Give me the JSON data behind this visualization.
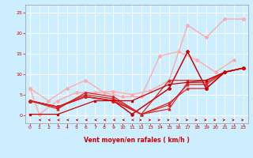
{
  "xlabel": "Vent moyen/en rafales ( km/h )",
  "background_color": "#cceeff",
  "grid_color": "#ffffff",
  "xlim": [
    -0.5,
    23.5
  ],
  "ylim": [
    -2,
    27
  ],
  "yticks": [
    0,
    5,
    10,
    15,
    20,
    25
  ],
  "xticks": [
    0,
    1,
    2,
    3,
    4,
    5,
    6,
    7,
    8,
    9,
    10,
    11,
    12,
    13,
    14,
    15,
    16,
    17,
    18,
    19,
    20,
    21,
    22,
    23
  ],
  "series": [
    {
      "x": [
        0,
        1,
        3,
        5,
        7,
        9,
        11,
        13,
        15,
        17,
        19,
        21,
        23
      ],
      "y": [
        6.5,
        0.2,
        3.5,
        5.5,
        5.5,
        5.8,
        5.0,
        6.0,
        8.5,
        22.0,
        19.0,
        23.5,
        23.5
      ],
      "color": "#ffaaaa",
      "lw": 1.0,
      "marker": "D",
      "ms": 2.0
    },
    {
      "x": [
        0,
        2,
        4,
        6,
        8,
        10,
        12,
        14,
        16,
        18,
        20,
        22
      ],
      "y": [
        6.5,
        3.5,
        6.5,
        8.5,
        5.5,
        4.5,
        4.5,
        14.5,
        15.5,
        13.5,
        10.5,
        13.5
      ],
      "color": "#ffaaaa",
      "lw": 1.0,
      "marker": "D",
      "ms": 2.0
    },
    {
      "x": [
        0,
        3,
        6,
        9,
        12,
        15,
        17,
        19,
        21,
        23
      ],
      "y": [
        3.5,
        1.5,
        5.5,
        4.5,
        0.2,
        1.5,
        8.0,
        8.0,
        10.5,
        11.5
      ],
      "color": "#dd2222",
      "lw": 0.9,
      "marker": "^",
      "ms": 2.0
    },
    {
      "x": [
        0,
        3,
        6,
        9,
        12,
        15,
        17,
        19,
        21,
        23
      ],
      "y": [
        3.5,
        2.0,
        5.0,
        4.0,
        0.2,
        2.5,
        7.5,
        7.5,
        10.5,
        11.5
      ],
      "color": "#dd2222",
      "lw": 0.9,
      "marker": "^",
      "ms": 2.0
    },
    {
      "x": [
        0,
        3,
        6,
        9,
        12,
        15,
        17,
        19,
        21,
        23
      ],
      "y": [
        3.5,
        2.0,
        4.5,
        3.5,
        0.2,
        3.0,
        6.5,
        6.5,
        10.5,
        11.5
      ],
      "color": "#dd2222",
      "lw": 0.9,
      "marker": "^",
      "ms": 2.0
    },
    {
      "x": [
        0,
        3,
        6,
        9,
        11,
        15,
        17,
        19,
        21,
        23
      ],
      "y": [
        3.5,
        2.0,
        4.5,
        3.5,
        0.2,
        6.5,
        15.5,
        6.5,
        10.5,
        11.5
      ],
      "color": "#cc0000",
      "lw": 1.1,
      "marker": "P",
      "ms": 2.5
    },
    {
      "x": [
        0,
        3,
        6,
        9,
        12,
        15,
        17,
        19,
        21,
        23
      ],
      "y": [
        3.5,
        2.0,
        4.5,
        3.5,
        0.2,
        8.5,
        8.5,
        8.5,
        10.5,
        11.5
      ],
      "color": "#dd2222",
      "lw": 0.9,
      "marker": "^",
      "ms": 2.0
    },
    {
      "x": [
        0,
        3,
        7,
        11,
        15,
        19,
        21,
        23
      ],
      "y": [
        0.2,
        0.2,
        3.5,
        3.5,
        7.5,
        8.5,
        10.5,
        11.5
      ],
      "color": "#cc0000",
      "lw": 0.9,
      "marker": "s",
      "ms": 2.0
    }
  ],
  "left_arrows": [
    1,
    2,
    3,
    4,
    5,
    6,
    7,
    8,
    9,
    10,
    11
  ],
  "right_arrows": [
    12,
    13,
    14,
    15,
    16,
    17,
    18,
    19,
    20,
    21,
    22,
    23
  ]
}
